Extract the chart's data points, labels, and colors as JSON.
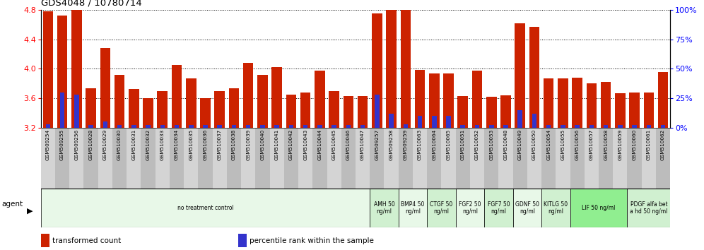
{
  "title": "GDS4048 / 10780714",
  "samples": [
    "GSM509254",
    "GSM509255",
    "GSM509256",
    "GSM510028",
    "GSM510029",
    "GSM510030",
    "GSM510031",
    "GSM510032",
    "GSM510033",
    "GSM510034",
    "GSM510035",
    "GSM510036",
    "GSM510037",
    "GSM510038",
    "GSM510039",
    "GSM510040",
    "GSM510041",
    "GSM510042",
    "GSM510043",
    "GSM510044",
    "GSM510045",
    "GSM510046",
    "GSM510047",
    "GSM509257",
    "GSM509258",
    "GSM509259",
    "GSM510063",
    "GSM510064",
    "GSM510065",
    "GSM510051",
    "GSM510052",
    "GSM510053",
    "GSM510048",
    "GSM510049",
    "GSM510050",
    "GSM510054",
    "GSM510055",
    "GSM510056",
    "GSM510057",
    "GSM510058",
    "GSM510059",
    "GSM510060",
    "GSM510061",
    "GSM510062"
  ],
  "transformed_counts": [
    4.78,
    4.72,
    4.8,
    3.73,
    4.28,
    3.92,
    3.72,
    3.6,
    3.7,
    4.05,
    3.87,
    3.6,
    3.7,
    3.73,
    4.08,
    3.92,
    4.02,
    3.65,
    3.68,
    3.97,
    3.7,
    3.63,
    3.63,
    4.75,
    4.8,
    4.82,
    3.98,
    3.94,
    3.94,
    3.63,
    3.97,
    3.62,
    3.64,
    4.62,
    4.57,
    3.87,
    3.87,
    3.88,
    3.8,
    3.82,
    3.67,
    3.68,
    3.68,
    3.96
  ],
  "percentile_ranks": [
    3,
    30,
    28,
    2,
    5,
    2,
    2,
    2,
    2,
    2,
    2,
    2,
    2,
    2,
    2,
    2,
    2,
    2,
    2,
    2,
    2,
    2,
    2,
    28,
    12,
    3,
    10,
    10,
    10,
    2,
    2,
    2,
    2,
    15,
    12,
    2,
    2,
    2,
    2,
    2,
    2,
    2,
    2,
    2
  ],
  "ymin": 3.2,
  "ymax": 4.8,
  "yticks_left": [
    3.2,
    3.6,
    4.0,
    4.4,
    4.8
  ],
  "yticks_right": [
    0,
    25,
    50,
    75,
    100
  ],
  "bar_color": "#cc2200",
  "percentile_color": "#3333cc",
  "xtick_bg_colors": [
    "#d4d4d4",
    "#bcbcbc"
  ],
  "agent_groups": [
    {
      "label": "no treatment control",
      "start": 0,
      "end": 23,
      "color": "#e8f8e8"
    },
    {
      "label": "AMH 50\nng/ml",
      "start": 23,
      "end": 25,
      "color": "#d0f0d0"
    },
    {
      "label": "BMP4 50\nng/ml",
      "start": 25,
      "end": 27,
      "color": "#e8f8e8"
    },
    {
      "label": "CTGF 50\nng/ml",
      "start": 27,
      "end": 29,
      "color": "#d0f0d0"
    },
    {
      "label": "FGF2 50\nng/ml",
      "start": 29,
      "end": 31,
      "color": "#e8f8e8"
    },
    {
      "label": "FGF7 50\nng/ml",
      "start": 31,
      "end": 33,
      "color": "#d0f0d0"
    },
    {
      "label": "GDNF 50\nng/ml",
      "start": 33,
      "end": 35,
      "color": "#e8f8e8"
    },
    {
      "label": "KITLG 50\nng/ml",
      "start": 35,
      "end": 37,
      "color": "#d0f0d0"
    },
    {
      "label": "LIF 50 ng/ml",
      "start": 37,
      "end": 41,
      "color": "#90ee90"
    },
    {
      "label": "PDGF alfa bet\na hd 50 ng/ml",
      "start": 41,
      "end": 44,
      "color": "#d0f0d0"
    }
  ],
  "legend_items": [
    {
      "label": "transformed count",
      "color": "#cc2200"
    },
    {
      "label": "percentile rank within the sample",
      "color": "#3333cc"
    }
  ]
}
